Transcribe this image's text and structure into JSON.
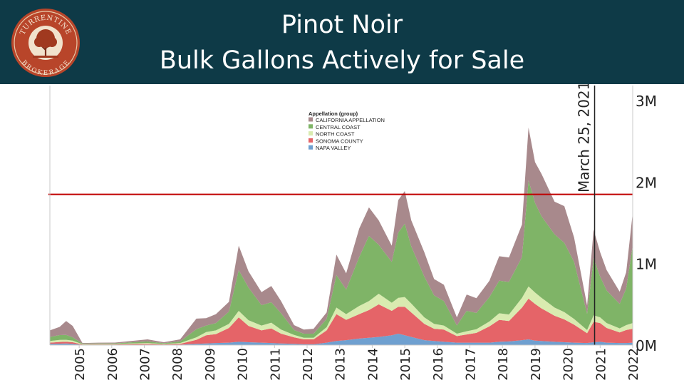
{
  "header": {
    "title_line1": "Pinot Noir",
    "title_line2": "Bulk Gallons Actively for Sale",
    "logo_text_top": "TURRENTINE",
    "logo_text_bottom": "BROKERAGE",
    "background_color": "#0e3a47"
  },
  "chart_data": {
    "type": "area",
    "stacked": true,
    "x_tick_labels": [
      "2005",
      "2006",
      "2007",
      "2008",
      "2009",
      "2010",
      "2011",
      "2012",
      "2013",
      "2014",
      "2015",
      "2016",
      "2017",
      "2018",
      "2019",
      "2020",
      "2021",
      "2022"
    ],
    "x_range": [
      2004.5,
      2022.4
    ],
    "y_tick_labels": [
      "3M",
      "2M",
      "1M",
      "0M"
    ],
    "y_ticks": [
      3000000,
      2000000,
      1000000,
      0
    ],
    "ylim": [
      0,
      3150000
    ],
    "grid": false,
    "legend": {
      "title": "Appellation (group)",
      "placement": "top-center",
      "entries": [
        {
          "name": "CALIFORNIA APPELLATION",
          "color": "#a8898c"
        },
        {
          "name": "CENTRAL COAST",
          "color": "#7fb467"
        },
        {
          "name": "NORTH COAST",
          "color": "#d9ebb0"
        },
        {
          "name": "SONOMA COUNTY",
          "color": "#e56468"
        },
        {
          "name": "NAPA VALLEY",
          "color": "#6fa0d0"
        }
      ]
    },
    "reference_line": {
      "value": 1850000,
      "color": "#c00000"
    },
    "annotation": {
      "label": "March 25, 2021",
      "x": 2021.23
    },
    "x": [
      2004.5,
      2004.8,
      2005.0,
      2005.2,
      2005.5,
      2006.0,
      2006.5,
      2007.0,
      2007.5,
      2008.0,
      2008.5,
      2009.0,
      2009.3,
      2009.6,
      2010.0,
      2010.3,
      2010.6,
      2011.0,
      2011.3,
      2011.6,
      2012.0,
      2012.3,
      2012.6,
      2013.0,
      2013.3,
      2013.6,
      2014.0,
      2014.3,
      2014.6,
      2015.0,
      2015.2,
      2015.4,
      2015.6,
      2016.0,
      2016.3,
      2016.6,
      2017.0,
      2017.3,
      2017.6,
      2018.0,
      2018.3,
      2018.6,
      2019.0,
      2019.2,
      2019.4,
      2019.6,
      2020.0,
      2020.3,
      2020.6,
      2021.0,
      2021.2,
      2021.4,
      2021.6,
      2022.0,
      2022.2,
      2022.4
    ],
    "series": [
      {
        "name": "NAPA VALLEY",
        "values": [
          15000,
          18000,
          20000,
          15000,
          3000,
          3000,
          3000,
          4000,
          5000,
          3000,
          5000,
          15000,
          20000,
          25000,
          30000,
          40000,
          35000,
          30000,
          25000,
          20000,
          15000,
          10000,
          10000,
          30000,
          50000,
          60000,
          80000,
          90000,
          100000,
          120000,
          140000,
          120000,
          100000,
          60000,
          50000,
          40000,
          30000,
          30000,
          30000,
          30000,
          40000,
          45000,
          60000,
          70000,
          55000,
          50000,
          40000,
          35000,
          30000,
          25000,
          35000,
          40000,
          30000,
          25000,
          25000,
          30000
        ]
      },
      {
        "name": "SONOMA COUNTY",
        "values": [
          15000,
          20000,
          20000,
          20000,
          4000,
          5000,
          5000,
          8000,
          10000,
          5000,
          10000,
          50000,
          100000,
          110000,
          180000,
          300000,
          200000,
          150000,
          180000,
          120000,
          80000,
          60000,
          60000,
          150000,
          330000,
          250000,
          300000,
          340000,
          400000,
          300000,
          330000,
          350000,
          300000,
          200000,
          150000,
          150000,
          80000,
          100000,
          120000,
          200000,
          270000,
          250000,
          400000,
          500000,
          450000,
          400000,
          320000,
          280000,
          220000,
          120000,
          250000,
          230000,
          180000,
          130000,
          160000,
          170000
        ]
      },
      {
        "name": "NORTH COAST",
        "values": [
          20000,
          25000,
          25000,
          20000,
          4000,
          5000,
          5000,
          8000,
          10000,
          5000,
          10000,
          30000,
          40000,
          45000,
          50000,
          80000,
          70000,
          60000,
          70000,
          50000,
          30000,
          20000,
          20000,
          40000,
          80000,
          70000,
          100000,
          110000,
          130000,
          100000,
          110000,
          120000,
          110000,
          80000,
          60000,
          50000,
          30000,
          40000,
          45000,
          60000,
          80000,
          80000,
          120000,
          150000,
          140000,
          130000,
          100000,
          90000,
          70000,
          40000,
          80000,
          70000,
          60000,
          50000,
          60000,
          70000
        ]
      },
      {
        "name": "CENTRAL COAST",
        "values": [
          50000,
          60000,
          60000,
          40000,
          6000,
          7000,
          8000,
          14000,
          20000,
          10000,
          20000,
          100000,
          80000,
          90000,
          150000,
          500000,
          400000,
          250000,
          250000,
          200000,
          60000,
          50000,
          50000,
          100000,
          400000,
          300000,
          600000,
          800000,
          600000,
          500000,
          800000,
          900000,
          700000,
          500000,
          350000,
          300000,
          100000,
          250000,
          200000,
          300000,
          400000,
          400000,
          500000,
          1300000,
          1100000,
          1000000,
          900000,
          850000,
          700000,
          200000,
          700000,
          500000,
          400000,
          300000,
          450000,
          950000
        ]
      },
      {
        "name": "CALIFORNIA APPELLATION",
        "values": [
          80000,
          100000,
          170000,
          140000,
          8000,
          10000,
          10000,
          16000,
          25000,
          12000,
          25000,
          130000,
          90000,
          110000,
          120000,
          300000,
          200000,
          160000,
          200000,
          150000,
          60000,
          50000,
          60000,
          80000,
          250000,
          200000,
          350000,
          350000,
          300000,
          200000,
          400000,
          400000,
          320000,
          300000,
          200000,
          200000,
          100000,
          200000,
          180000,
          200000,
          300000,
          300000,
          400000,
          650000,
          500000,
          520000,
          400000,
          450000,
          300000,
          100000,
          350000,
          300000,
          250000,
          150000,
          200000,
          400000
        ]
      }
    ]
  }
}
